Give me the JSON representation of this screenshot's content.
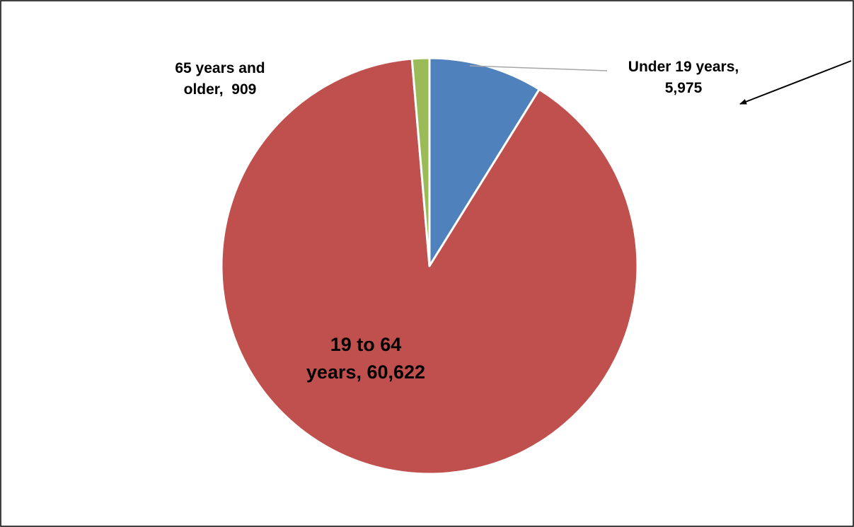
{
  "chart_data": {
    "type": "pie",
    "title": "",
    "slices": [
      {
        "label_lines": [
          "Under 19 years,",
          "5,975"
        ],
        "category": "Under 19 years",
        "value": 5975,
        "color": "#4F81BD"
      },
      {
        "label_lines": [
          "19 to 64",
          "years, 60,622"
        ],
        "category": "19 to 64 years",
        "value": 60622,
        "color": "#C0504D"
      },
      {
        "label_lines": [
          "65 years and",
          "older,  909"
        ],
        "category": "65 years and older",
        "value": 909,
        "color": "#9BBB59"
      }
    ],
    "start_angle_deg": 0,
    "direction": "clockwise",
    "legend": "none",
    "slice_border_color": "#FFFFFF",
    "annotation": "arrow pointing to the Under 19 years label"
  }
}
